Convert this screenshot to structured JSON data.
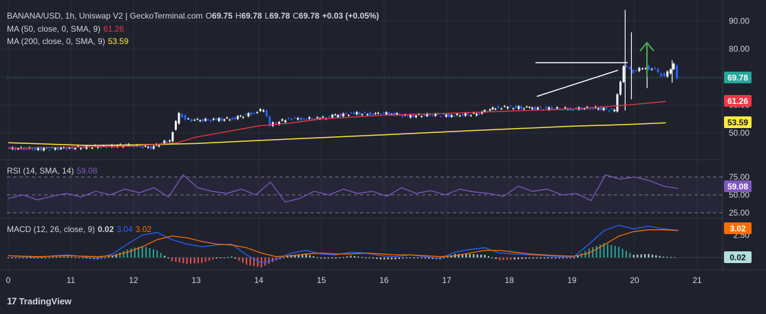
{
  "header": {
    "symbol": "BANANA/USD, 1h, Uniswap V2 | GeckoTerminal.com",
    "o_label": "O",
    "o_val": "69.75",
    "h_label": "H",
    "h_val": "69.78",
    "l_label": "L",
    "l_val": "69.78",
    "c_label": "C",
    "c_val": "69.78",
    "change": "+0.03 (+0.05%)"
  },
  "ma50": {
    "label": "MA (50, close, 0, SMA, 9)",
    "value": "61.26",
    "color": "#f23645"
  },
  "ma200": {
    "label": "MA (200, close, 0, SMA, 9)",
    "value": "53.59",
    "color": "#ffeb3b"
  },
  "rsi": {
    "label": "RSI (14, SMA, 14)",
    "value": "59.08",
    "color": "#7e57c2"
  },
  "macd": {
    "label": "MACD (12, 26, close, 9)",
    "v1": "0.02",
    "v2": "3.04",
    "v3": "3.02",
    "color_macd": "#2962ff",
    "color_signal": "#ff6d00"
  },
  "price_badges": {
    "last": "69.78",
    "ma50": "61.26",
    "ma200": "53.59"
  },
  "rsi_badge": "59.08",
  "macd_badges": {
    "signal": "3.02",
    "hist": "0.02"
  },
  "footer": {
    "brand": "TradingView",
    "logo_mark": "17"
  },
  "colors": {
    "up": "#26a69a",
    "down": "#ef5350",
    "bg": "#1f222d",
    "annotation": "#ffffff",
    "arrow": "#4caf50"
  },
  "chart_data": [
    {
      "type": "candlestick",
      "title": "BANANA/USD, 1h, Uniswap V2",
      "x_ticks": [
        "0",
        "11",
        "12",
        "13",
        "14",
        "15",
        "16",
        "17",
        "18",
        "19",
        "20",
        "21"
      ],
      "y_ticks": [
        "50.00",
        "60.00",
        "70.00",
        "80.00",
        "90.00"
      ],
      "ylim": [
        45,
        95
      ],
      "series": [
        {
          "name": "Price",
          "points": [
            [
              0,
              44.5
            ],
            [
              0.5,
              44.2
            ],
            [
              1,
              44.6
            ],
            [
              1.5,
              45.2
            ],
            [
              1.9,
              45.6
            ],
            [
              2.3,
              44.8
            ],
            [
              2.6,
              47.5
            ],
            [
              2.75,
              57
            ],
            [
              2.85,
              55
            ],
            [
              3,
              54.5
            ],
            [
              3.3,
              54.7
            ],
            [
              3.6,
              55.1
            ],
            [
              3.9,
              57
            ],
            [
              4.1,
              58.3
            ],
            [
              4.2,
              53
            ],
            [
              4.3,
              53.5
            ],
            [
              4.5,
              55.2
            ],
            [
              4.7,
              55
            ],
            [
              5,
              55.2
            ],
            [
              5.2,
              56
            ],
            [
              5.5,
              57
            ],
            [
              5.8,
              56.8
            ],
            [
              6.1,
              57
            ],
            [
              6.4,
              56
            ],
            [
              6.8,
              56.5
            ],
            [
              7.1,
              56.2
            ],
            [
              7.5,
              56.8
            ],
            [
              7.8,
              59
            ],
            [
              8,
              59.2
            ],
            [
              8.3,
              58.9
            ],
            [
              8.7,
              58.7
            ],
            [
              9,
              58.6
            ],
            [
              9.4,
              58.9
            ],
            [
              9.7,
              58
            ],
            [
              9.85,
              74
            ],
            [
              10,
              72
            ],
            [
              10.2,
              73.5
            ],
            [
              10.35,
              72.5
            ],
            [
              10.5,
              70
            ],
            [
              10.6,
              73
            ],
            [
              10.65,
              74.5
            ],
            [
              10.7,
              69.78
            ]
          ]
        },
        {
          "name": "MA (50, close, 0, SMA, 9)",
          "points": [
            [
              0,
              44.5
            ],
            [
              2,
              45.3
            ],
            [
              2.7,
              46.5
            ],
            [
              3,
              48.5
            ],
            [
              4,
              52.5
            ],
            [
              4.5,
              53.5
            ],
            [
              5,
              55
            ],
            [
              6,
              56.3
            ],
            [
              7,
              57
            ],
            [
              8,
              57.8
            ],
            [
              9,
              58.5
            ],
            [
              9.9,
              60
            ],
            [
              10.5,
              61.26
            ]
          ]
        },
        {
          "name": "MA (200, close, 0, SMA, 9)",
          "points": [
            [
              0,
              46.5
            ],
            [
              1.3,
              45.5
            ],
            [
              2,
              45.7
            ],
            [
              3,
              46.2
            ],
            [
              4,
              47.3
            ],
            [
              5,
              48.3
            ],
            [
              6,
              49.3
            ],
            [
              7,
              50.4
            ],
            [
              8,
              51.4
            ],
            [
              9,
              52.4
            ],
            [
              9.9,
              53
            ],
            [
              10.5,
              53.59
            ]
          ]
        }
      ]
    },
    {
      "type": "line",
      "title": "RSI (14, SMA, 14)",
      "y_ticks": [
        "25.00",
        "50.00",
        "75.00"
      ],
      "ylim": [
        20,
        85
      ],
      "series": [
        {
          "name": "RSI",
          "values": [
            45,
            50,
            43,
            48,
            52,
            47,
            55,
            50,
            58,
            53,
            60,
            47,
            78,
            60,
            55,
            52,
            58,
            50,
            68,
            40,
            45,
            55,
            50,
            58,
            52,
            55,
            48,
            60,
            52,
            56,
            50,
            58,
            54,
            52,
            48,
            62,
            55,
            58,
            50,
            52,
            42,
            78,
            72,
            75,
            70,
            62,
            59.08
          ]
        }
      ]
    },
    {
      "type": "bar",
      "title": "MACD (12, 26, close, 9)",
      "y_ticks": [
        "2.50"
      ],
      "series": [
        {
          "name": "MACD",
          "values": [
            0.2,
            0.1,
            0,
            0.2,
            0.3,
            0.1,
            -0.1,
            0.4,
            1.5,
            2.5,
            2.8,
            2,
            1.5,
            1.2,
            1.4,
            1.5,
            0.3,
            -0.6,
            -0.2,
            0.5,
            0.8,
            0.4,
            0.3,
            0.6,
            0.5,
            0.2,
            0.1,
            0.3,
            0.1,
            -0.1,
            0.6,
            0.9,
            1.1,
            0.5,
            0.4,
            0.3,
            0.2,
            0.1,
            0.1,
            1.5,
            3,
            3.6,
            3.2,
            3.5,
            3.2,
            3.04
          ]
        },
        {
          "name": "Signal",
          "values": [
            0.2,
            0.15,
            0.1,
            0.15,
            0.2,
            0.15,
            0.1,
            0.2,
            0.6,
            1.2,
            2,
            2.4,
            2.2,
            1.8,
            1.5,
            1.4,
            1.1,
            0.5,
            0.1,
            0.2,
            0.4,
            0.5,
            0.4,
            0.4,
            0.5,
            0.4,
            0.3,
            0.3,
            0.2,
            0.1,
            0.2,
            0.5,
            0.8,
            0.8,
            0.6,
            0.4,
            0.3,
            0.2,
            0.15,
            0.5,
            1.4,
            2.4,
            2.9,
            3.1,
            3.1,
            3.02
          ]
        }
      ]
    }
  ]
}
